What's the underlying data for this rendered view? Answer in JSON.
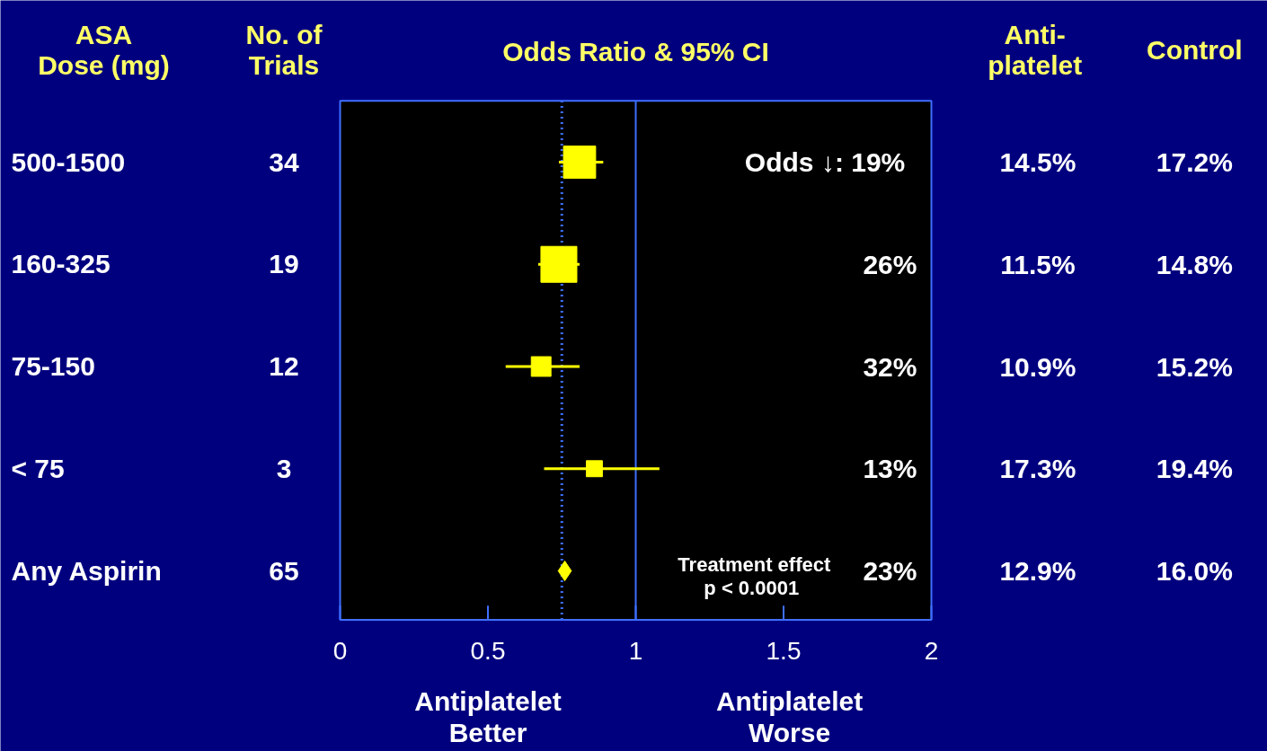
{
  "chart_data": {
    "type": "scatter",
    "orientation": "horizontal",
    "title": "Odds Ratio & 95% CI",
    "ylabel": "ASA\nDose (mg)",
    "categories": [
      "500-1500",
      "160-325",
      "75-150",
      "< 75",
      "Any Aspirin"
    ],
    "xlim": [
      0,
      2
    ],
    "xticks": [
      0,
      0.5,
      1,
      1.5,
      2
    ],
    "grid": false,
    "series": [
      {
        "type": "bubble",
        "marker": "square",
        "color": "#ffff00",
        "values": [
          0.81,
          0.74,
          0.68,
          0.86,
          null
        ],
        "sizes": [
          0.8,
          1,
          0.3,
          0.2,
          null
        ],
        "errors": [
          [
            0.74,
            0.89
          ],
          [
            0.67,
            0.81
          ],
          [
            0.56,
            0.81
          ],
          [
            0.69,
            1.08
          ],
          null
        ]
      },
      {
        "marker": "diamond",
        "color": "#ffff00",
        "values": [
          null,
          null,
          null,
          null,
          0.76
        ]
      }
    ],
    "ref_lines": [
      {
        "axis": "x",
        "value": 1,
        "color": "#3f6fff",
        "line_style": "solid"
      },
      {
        "axis": "x",
        "value": 0.75,
        "color": "#3f6fff",
        "line_style": "dotted"
      }
    ],
    "annotations": [
      "No. of\nTrials",
      "Anti-\nplatelet",
      "Control",
      "Antiplatelet\nBetter",
      "Antiplatelet\nWorse",
      "34",
      "19",
      "12",
      "3",
      "65",
      "Odds ↓: 19%",
      "26%",
      "32%",
      "13%",
      "23%",
      "Treatment  effect\np  <  0.0001",
      "14.5%",
      "11.5%",
      "10.9%",
      "17.3%",
      "12.9%",
      "17.2%",
      "14.8%",
      "15.2%",
      "19.4%",
      "16.0%"
    ]
  }
}
